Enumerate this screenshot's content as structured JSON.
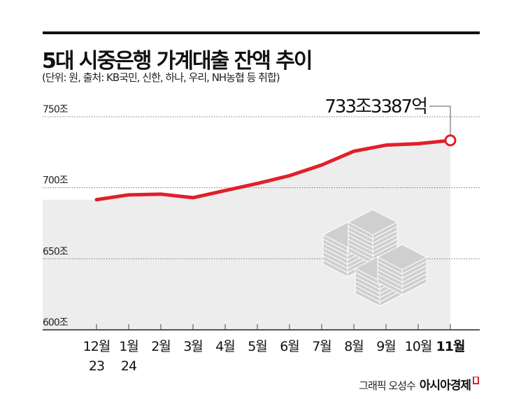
{
  "title": "5대 시중은행 가계대출 잔액 추이",
  "subtitle": "(단위: 원, 출처: KB국민, 신한, 하나, 우리, NH농협 등 취합)",
  "credit": {
    "author": "그래픽 오성수",
    "brand": "아시아경제"
  },
  "chart_data": {
    "type": "area",
    "title": "5대 시중은행 가계대출 잔액 추이",
    "categories": [
      "12월\n23",
      "1월\n24",
      "2월",
      "3월",
      "4월",
      "5월",
      "6월",
      "7월",
      "8월",
      "9월",
      "10월",
      "11월"
    ],
    "category_labels": [
      [
        "12월",
        "23"
      ],
      [
        "1월",
        "24"
      ],
      [
        "2월"
      ],
      [
        "3월"
      ],
      [
        "4월"
      ],
      [
        "5월"
      ],
      [
        "6월"
      ],
      [
        "7월"
      ],
      [
        "8월"
      ],
      [
        "9월"
      ],
      [
        "10월"
      ],
      [
        "11월"
      ]
    ],
    "values": [
      691.6,
      695,
      695.5,
      693,
      698,
      703,
      708.5,
      716,
      725.7,
      730,
      731,
      733.3387
    ],
    "unit": "조",
    "ylim": [
      600,
      750
    ],
    "yticks": [
      600,
      650,
      700,
      750
    ],
    "ytick_labels": [
      "600조",
      "650조",
      "700조",
      "750조"
    ],
    "grid": true,
    "annotation": "733조3387억",
    "line_color": "#e0202a",
    "fill_color": "#ededed"
  }
}
